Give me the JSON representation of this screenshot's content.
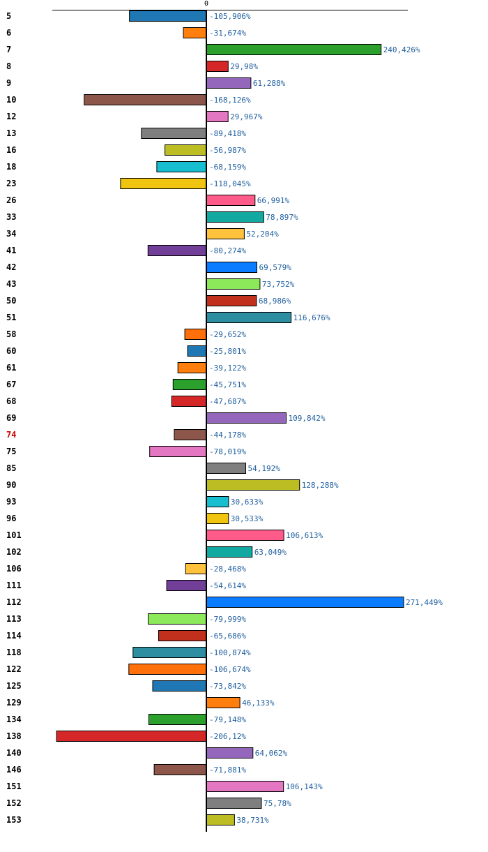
{
  "chart_data": {
    "type": "bar",
    "orientation": "horizontal",
    "title": "",
    "xlabel": "",
    "ylabel": "",
    "xlim": [
      -274,
      393
    ],
    "x_ticks": [
      0
    ],
    "x_tick_labels": [
      "0"
    ],
    "value_suffix": "%",
    "highlight_category": "74",
    "highlight_color": "#cc0000",
    "categories": [
      "5",
      "6",
      "7",
      "8",
      "9",
      "10",
      "12",
      "13",
      "16",
      "18",
      "23",
      "26",
      "33",
      "34",
      "41",
      "42",
      "43",
      "50",
      "51",
      "58",
      "60",
      "61",
      "67",
      "68",
      "69",
      "74",
      "75",
      "85",
      "90",
      "93",
      "96",
      "101",
      "102",
      "106",
      "111",
      "112",
      "113",
      "114",
      "118",
      "122",
      "125",
      "129",
      "134",
      "138",
      "140",
      "146",
      "151",
      "152",
      "153"
    ],
    "values": [
      -105.906,
      -31.674,
      240.426,
      29.98,
      61.288,
      -168.126,
      29.967,
      -89.418,
      -56.987,
      -68.159,
      -118.045,
      66.991,
      78.897,
      52.204,
      -80.274,
      69.579,
      73.752,
      68.986,
      116.676,
      -29.652,
      -25.801,
      -39.122,
      -45.751,
      -47.687,
      109.842,
      -44.178,
      -78.019,
      54.192,
      128.288,
      30.633,
      30.533,
      106.613,
      63.049,
      -28.468,
      -54.614,
      271.449,
      -79.999,
      -65.686,
      -100.874,
      -106.674,
      -73.842,
      46.133,
      -79.148,
      -206.12,
      64.062,
      -71.881,
      106.143,
      75.78,
      38.731
    ],
    "value_labels": [
      "-105,906%",
      "-31,674%",
      "240,426%",
      "29,98%",
      "61,288%",
      "-168,126%",
      "29,967%",
      "-89,418%",
      "-56,987%",
      "-68,159%",
      "-118,045%",
      "66,991%",
      "78,897%",
      "52,204%",
      "-80,274%",
      "69,579%",
      "73,752%",
      "68,986%",
      "116,676%",
      "-29,652%",
      "-25,801%",
      "-39,122%",
      "-45,751%",
      "-47,687%",
      "109,842%",
      "-44,178%",
      "-78,019%",
      "54,192%",
      "128,288%",
      "30,633%",
      "30,533%",
      "106,613%",
      "63,049%",
      "-28,468%",
      "-54,614%",
      "271,449%",
      "-79,999%",
      "-65,686%",
      "-100,874%",
      "-106,674%",
      "-73,842%",
      "46,133%",
      "-79,148%",
      "-206,12%",
      "64,062%",
      "-71,881%",
      "106,143%",
      "75,78%",
      "38,731%"
    ],
    "colors": [
      "#1f77b4",
      "#ff7f0e",
      "#2ca02c",
      "#d62728",
      "#9467bd",
      "#8c564b",
      "#e377c2",
      "#7f7f7f",
      "#bcbd22",
      "#17becf",
      "#f1c40f",
      "#ff5b8a",
      "#12aaa0",
      "#ffc23d",
      "#723f98",
      "#0a7cff",
      "#8cea5a",
      "#c1301c",
      "#2c8ea0",
      "#ff6f0a"
    ]
  }
}
